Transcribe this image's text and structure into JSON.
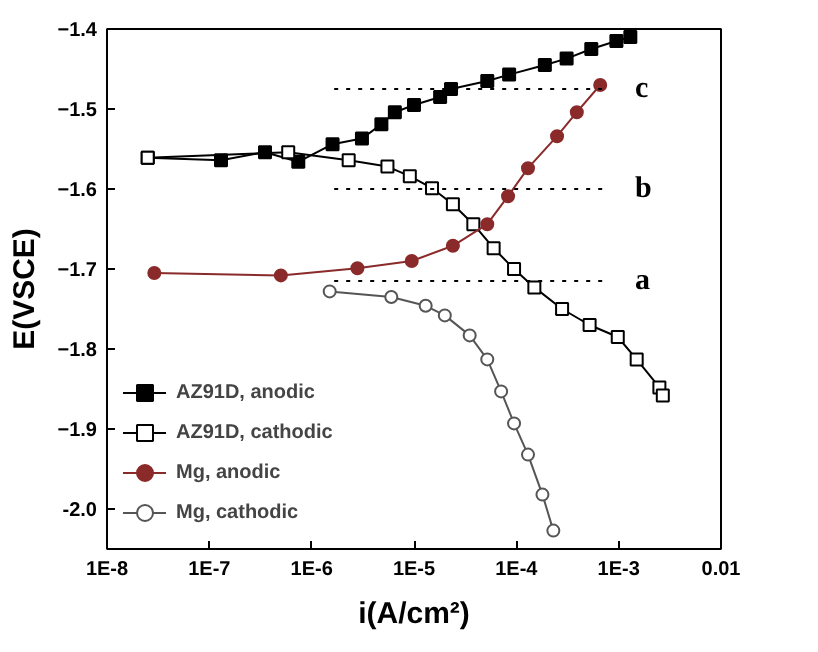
{
  "chart_data": {
    "type": "line",
    "xlabel": "i(A/cm²)",
    "ylabel": "E(VSCE)",
    "log": "x",
    "xlim": [
      1e-08,
      0.01
    ],
    "ylim": [
      -2.05,
      -1.4
    ],
    "xticks": [
      {
        "value": 1e-08,
        "label": "1E-8"
      },
      {
        "value": 1e-07,
        "label": "1E-7"
      },
      {
        "value": 1e-06,
        "label": "1E-6"
      },
      {
        "value": 1e-05,
        "label": "1E-5"
      },
      {
        "value": 0.0001,
        "label": "1E-4"
      },
      {
        "value": 0.001,
        "label": "1E-3"
      },
      {
        "value": 0.01,
        "label": "0.01"
      }
    ],
    "yticks": [
      -1.4,
      -1.5,
      -1.6,
      -1.7,
      -1.8,
      -1.9,
      {
        "value": -2.0,
        "label": "-2.0"
      }
    ],
    "grid": false,
    "legend": "bottom left",
    "series": [
      {
        "name": "AZ91D, anodic",
        "color": "#000000",
        "marker": "square",
        "x": [
          2.5e-08,
          1.3e-07,
          3.5e-07,
          7.4e-07,
          1.6e-06,
          3.1e-06,
          4.8e-06,
          6.5e-06,
          1e-05,
          1.8e-05,
          2.3e-05,
          5.2e-05,
          8.5e-05,
          0.00019,
          0.00031,
          0.00054,
          0.00095,
          0.0013
        ],
        "values": [
          -1.561,
          -1.564,
          -1.554,
          -1.566,
          -1.544,
          -1.537,
          -1.519,
          -1.504,
          -1.495,
          -1.485,
          -1.475,
          -1.465,
          -1.457,
          -1.445,
          -1.437,
          -1.425,
          -1.415,
          -1.41
        ]
      },
      {
        "name": "AZ91D, cathodic",
        "color": "#000000",
        "marker": "square",
        "x": [
          2.5e-08,
          5.9e-07,
          2.3e-06,
          5.5e-06,
          9.1e-06,
          1.5e-05,
          2.4e-05,
          3.8e-05,
          6e-05,
          9.5e-05,
          0.00015,
          0.00028,
          0.00052,
          0.00098,
          0.0015,
          0.0025,
          0.0027
        ],
        "values": [
          -1.561,
          -1.554,
          -1.564,
          -1.572,
          -1.584,
          -1.599,
          -1.619,
          -1.644,
          -1.674,
          -1.7,
          -1.723,
          -1.75,
          -1.77,
          -1.785,
          -1.813,
          -1.848,
          -1.858
        ]
      },
      {
        "name": "Mg, anodic",
        "color": "#8b2a2a",
        "marker": "circle",
        "x": [
          2.9e-08,
          5e-07,
          2.8e-06,
          9.5e-06,
          2.4e-05,
          5.2e-05,
          8.3e-05,
          0.00013,
          0.00025,
          0.00039,
          0.00066
        ],
        "values": [
          -1.705,
          -1.708,
          -1.699,
          -1.69,
          -1.671,
          -1.644,
          -1.609,
          -1.574,
          -1.534,
          -1.504,
          -1.47
        ]
      },
      {
        "name": "Mg, cathodic",
        "color": "#555555",
        "marker": "circle",
        "x": [
          1.5e-06,
          6e-06,
          1.3e-05,
          2e-05,
          3.5e-05,
          5.2e-05,
          7.1e-05,
          9.5e-05,
          0.00013,
          0.00018,
          0.00023
        ],
        "values": [
          -1.728,
          -1.735,
          -1.746,
          -1.758,
          -1.783,
          -1.813,
          -1.853,
          -1.893,
          -1.932,
          -1.982,
          -2.027
        ]
      }
    ],
    "ref_lines": [
      {
        "axis": "y",
        "value": -1.475,
        "label": "c",
        "line_style": "dotted"
      },
      {
        "axis": "y",
        "value": -1.6,
        "label": "b",
        "line_style": "dotted"
      },
      {
        "axis": "y",
        "value": -1.715,
        "label": "a",
        "line_style": "dotted"
      }
    ]
  }
}
